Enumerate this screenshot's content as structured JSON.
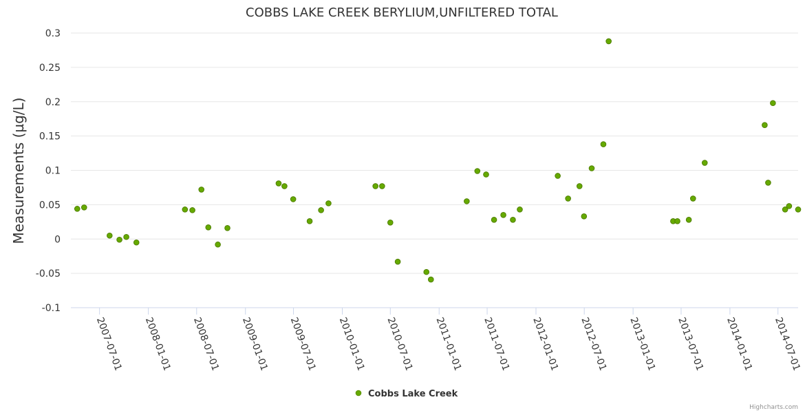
{
  "chart_data": {
    "type": "scatter",
    "title": "COBBS LAKE CREEK BERYLIUM,UNFILTERED TOTAL",
    "ylabel": "Measurements (µg/L)",
    "xlabel": "",
    "ylim": [
      -0.1,
      0.3
    ],
    "yticks": [
      "0.3",
      "0.25",
      "0.2",
      "0.15",
      "0.1",
      "0.05",
      "0",
      "-0.05",
      "-0.1"
    ],
    "xticks": [
      "2007-07-01",
      "2008-01-01",
      "2008-07-01",
      "2009-01-01",
      "2009-07-01",
      "2010-01-01",
      "2010-07-01",
      "2011-01-01",
      "2011-07-01",
      "2012-01-01",
      "2012-07-01",
      "2013-01-01",
      "2013-07-01",
      "2014-01-01",
      "2014-07-01"
    ],
    "xlim": [
      "2007-03-15",
      "2014-09-15"
    ],
    "grid": true,
    "legend_position": "bottom-center",
    "series": [
      {
        "name": "Cobbs Lake Creek",
        "color": "#66aa00",
        "points": [
          [
            "2007-04-08",
            0.044
          ],
          [
            "2007-05-04",
            0.046
          ],
          [
            "2007-08-08",
            0.005
          ],
          [
            "2007-09-14",
            -0.001
          ],
          [
            "2007-10-10",
            0.003
          ],
          [
            "2007-11-17",
            -0.005
          ],
          [
            "2008-05-18",
            0.043
          ],
          [
            "2008-06-15",
            0.042
          ],
          [
            "2008-07-19",
            0.072
          ],
          [
            "2008-08-14",
            0.017
          ],
          [
            "2008-09-19",
            -0.008
          ],
          [
            "2008-10-25",
            0.016
          ],
          [
            "2009-05-06",
            0.081
          ],
          [
            "2009-05-28",
            0.077
          ],
          [
            "2009-06-30",
            0.058
          ],
          [
            "2009-08-31",
            0.026
          ],
          [
            "2009-10-13",
            0.042
          ],
          [
            "2009-11-10",
            0.052
          ],
          [
            "2010-05-06",
            0.077
          ],
          [
            "2010-05-31",
            0.077
          ],
          [
            "2010-07-01",
            0.024
          ],
          [
            "2010-07-29",
            -0.033
          ],
          [
            "2010-11-14",
            -0.048
          ],
          [
            "2010-12-01",
            -0.059
          ],
          [
            "2011-04-15",
            0.055
          ],
          [
            "2011-05-25",
            0.099
          ],
          [
            "2011-06-27",
            0.094
          ],
          [
            "2011-07-27",
            0.028
          ],
          [
            "2011-08-31",
            0.035
          ],
          [
            "2011-10-06",
            0.028
          ],
          [
            "2011-11-01",
            0.043
          ],
          [
            "2012-03-23",
            0.092
          ],
          [
            "2012-05-01",
            0.059
          ],
          [
            "2012-06-13",
            0.077
          ],
          [
            "2012-06-30",
            0.033
          ],
          [
            "2012-07-29",
            0.103
          ],
          [
            "2012-09-11",
            0.138
          ],
          [
            "2012-10-01",
            0.288
          ],
          [
            "2013-06-01",
            0.026
          ],
          [
            "2013-06-17",
            0.026
          ],
          [
            "2013-07-30",
            0.028
          ],
          [
            "2013-08-15",
            0.059
          ],
          [
            "2013-09-28",
            0.111
          ],
          [
            "2014-05-12",
            0.166
          ],
          [
            "2014-05-25",
            0.082
          ],
          [
            "2014-06-12",
            0.198
          ],
          [
            "2014-07-28",
            0.043
          ],
          [
            "2014-08-12",
            0.048
          ],
          [
            "2014-09-15",
            0.043
          ]
        ]
      }
    ]
  },
  "credit": "Highcharts.com"
}
